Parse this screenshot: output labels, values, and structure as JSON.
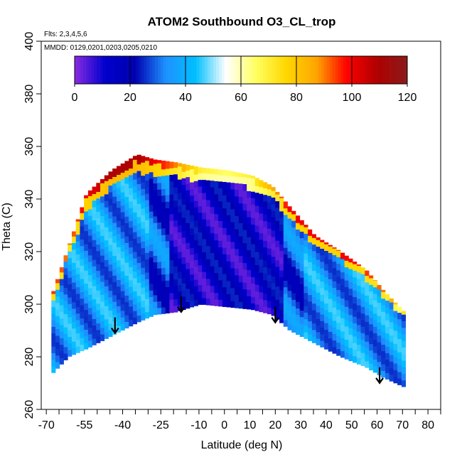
{
  "chart_data": {
    "type": "heatmap",
    "title": "ATOM2 Southbound O3_CL_trop",
    "annotations": {
      "flights": "Flts: 2,3,4,5,6",
      "dates": "MMDD: 0129,0201,0203,0205,0210"
    },
    "xlabel": "Latitude (deg N)",
    "ylabel": "Theta (C)",
    "xlim": [
      -72,
      85
    ],
    "ylim": [
      260,
      400
    ],
    "x_ticks": [
      -70,
      -65,
      -60,
      -55,
      -50,
      -45,
      -40,
      -35,
      -30,
      -25,
      -20,
      -15,
      -10,
      -5,
      0,
      5,
      10,
      15,
      20,
      25,
      30,
      35,
      40,
      45,
      50,
      55,
      60,
      65,
      70,
      75,
      80,
      85
    ],
    "x_tick_labels": [
      "-70",
      "",
      "",
      "-55",
      "",
      "",
      "-40",
      "",
      "",
      "-25",
      "",
      "",
      "-10",
      "",
      "0",
      "",
      "10",
      "",
      "20",
      "",
      "30",
      "",
      "40",
      "",
      "50",
      "",
      "60",
      "",
      "70",
      "",
      "80",
      ""
    ],
    "y_ticks": [
      260,
      280,
      300,
      320,
      340,
      360,
      380,
      400
    ],
    "y_tick_labels": [
      "260",
      "280",
      "300",
      "320",
      "340",
      "360",
      "380",
      "400"
    ],
    "colorbar": {
      "ticks": [
        0,
        20,
        40,
        60,
        80,
        100,
        120
      ],
      "tick_labels": [
        "0",
        "20",
        "40",
        "60",
        "80",
        "100",
        "120"
      ],
      "min": 0,
      "max": 120,
      "stops": [
        "#8a2be2",
        "#0000cd",
        "#0000b0",
        "#1e90ff",
        "#00bfff",
        "#ffffff",
        "#ffff60",
        "#ffd700",
        "#ffa500",
        "#ff0000",
        "#b00000",
        "#8b1a1a"
      ]
    },
    "series": [
      {
        "values": [
          {
            "lat": -68,
            "ymin": 274,
            "ymax": 305,
            "top_value": 95
          },
          {
            "lat": -62,
            "ymin": 280,
            "ymax": 322,
            "top_value": 90
          },
          {
            "lat": -55,
            "ymin": 283,
            "ymax": 342,
            "top_value": 100
          },
          {
            "lat": -45,
            "ymin": 288,
            "ymax": 351,
            "top_value": 110
          },
          {
            "lat": -35,
            "ymin": 293,
            "ymax": 357,
            "top_value": 110
          },
          {
            "lat": -28,
            "ymin": 296,
            "ymax": 355,
            "top_value": 100
          },
          {
            "lat": -20,
            "ymin": 297,
            "ymax": 354,
            "top_value": 90
          },
          {
            "lat": -10,
            "ymin": 300,
            "ymax": 352,
            "top_value": 70
          },
          {
            "lat": 0,
            "ymin": 299,
            "ymax": 351,
            "top_value": 65
          },
          {
            "lat": 10,
            "ymin": 298,
            "ymax": 349,
            "top_value": 70
          },
          {
            "lat": 18,
            "ymin": 296,
            "ymax": 345,
            "top_value": 85
          },
          {
            "lat": 25,
            "ymin": 290,
            "ymax": 337,
            "top_value": 100
          },
          {
            "lat": 35,
            "ymin": 285,
            "ymax": 326,
            "top_value": 100
          },
          {
            "lat": 45,
            "ymin": 280,
            "ymax": 320,
            "top_value": 100
          },
          {
            "lat": 55,
            "ymin": 276,
            "ymax": 313,
            "top_value": 95
          },
          {
            "lat": 62,
            "ymin": 272,
            "ymax": 305,
            "top_value": 90
          },
          {
            "lat": 71,
            "ymin": 268,
            "ymax": 296,
            "top_value": 70
          }
        ]
      }
    ],
    "arrows": [
      {
        "lat": -43,
        "theta": 295
      },
      {
        "lat": -17,
        "theta": 303
      },
      {
        "lat": 20,
        "theta": 299
      },
      {
        "lat": 61,
        "theta": 276
      }
    ]
  }
}
